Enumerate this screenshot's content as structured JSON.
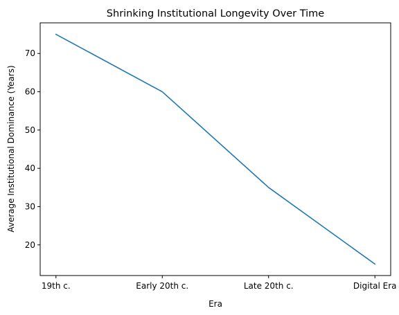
{
  "chart_data": {
    "type": "line",
    "title": "Shrinking Institutional Longevity Over Time",
    "xlabel": "Era",
    "ylabel": "Average Institutional Dominance (Years)",
    "categories": [
      "19th c.",
      "Early 20th c.",
      "Late 20th c.",
      "Digital Era"
    ],
    "series": [
      {
        "values": [
          75,
          60,
          35,
          15
        ],
        "color": "#1f77b4"
      }
    ],
    "ylim": [
      12,
      78
    ],
    "yticks": [
      20,
      30,
      40,
      50,
      60,
      70
    ],
    "grid": false,
    "legend": "none"
  }
}
